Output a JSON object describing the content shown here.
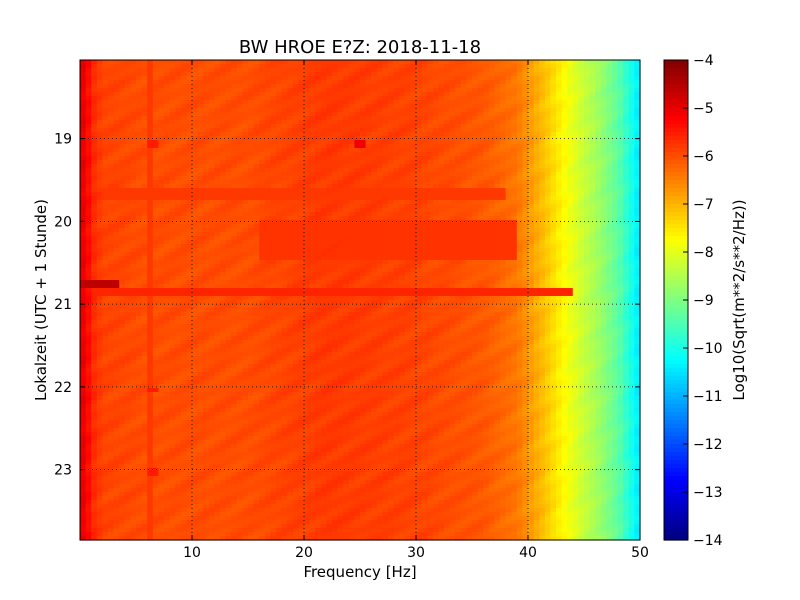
{
  "chart_data": {
    "type": "heatmap",
    "title": "BW HROE E?Z: 2018-11-18",
    "xlabel": "Frequency [Hz]",
    "ylabel": "Lokalzeit (UTC + 1 Stunde)",
    "xlim": [
      0,
      50
    ],
    "ylim": [
      18.05,
      23.85
    ],
    "x_ticks": [
      10,
      20,
      30,
      40,
      50
    ],
    "x_tick_labels": [
      "10",
      "20",
      "30",
      "40",
      "50"
    ],
    "y_ticks": [
      19,
      20,
      21,
      22,
      23
    ],
    "y_tick_labels": [
      "19",
      "20",
      "21",
      "22",
      "23"
    ],
    "y_inverted": true,
    "grid": true,
    "colorbar": {
      "label": "Log10(Sqrt(m**2/s**2/Hz))",
      "range": [
        -14,
        -4
      ],
      "ticks": [
        -4,
        -5,
        -6,
        -7,
        -8,
        -9,
        -10,
        -11,
        -12,
        -13,
        -14
      ],
      "tick_labels": [
        "−4",
        "−5",
        "−6",
        "−7",
        "−8",
        "−9",
        "−10",
        "−11",
        "−12",
        "−13",
        "−14"
      ],
      "colormap": "jet"
    },
    "frequency_profile": [
      {
        "f": 0.0,
        "v": -5.0
      },
      {
        "f": 0.5,
        "v": -5.1
      },
      {
        "f": 1.0,
        "v": -5.6
      },
      {
        "f": 2.0,
        "v": -5.9
      },
      {
        "f": 6.0,
        "v": -6.0
      },
      {
        "f": 15.0,
        "v": -6.0
      },
      {
        "f": 22.0,
        "v": -5.8
      },
      {
        "f": 30.0,
        "v": -5.9
      },
      {
        "f": 36.0,
        "v": -6.1
      },
      {
        "f": 39.0,
        "v": -6.4
      },
      {
        "f": 41.0,
        "v": -7.0
      },
      {
        "f": 42.5,
        "v": -7.5
      },
      {
        "f": 44.0,
        "v": -8.0
      },
      {
        "f": 46.0,
        "v": -8.6
      },
      {
        "f": 48.0,
        "v": -9.3
      },
      {
        "f": 49.5,
        "v": -10.2
      },
      {
        "f": 50.0,
        "v": -10.5
      }
    ],
    "features": [
      {
        "type": "band",
        "hour_from": 20.7,
        "hour_to": 20.8,
        "f_from": 0.0,
        "f_to": 3.5,
        "value": -4.6
      },
      {
        "type": "band",
        "hour_from": 20.8,
        "hour_to": 20.88,
        "f_from": 0.0,
        "f_to": 44.0,
        "value": -5.6
      },
      {
        "type": "band",
        "hour_from": 20.0,
        "hour_to": 20.45,
        "f_from": 16.0,
        "f_to": 39.0,
        "value": -5.75
      },
      {
        "type": "band",
        "hour_from": 19.6,
        "hour_to": 19.7,
        "f_from": 0.0,
        "f_to": 38.0,
        "value": -5.8
      },
      {
        "type": "spot",
        "hour_from": 19.02,
        "hour_to": 19.08,
        "f_from": 24.5,
        "f_to": 25.5,
        "value": -5.1
      },
      {
        "type": "spot",
        "hour_from": 19.02,
        "hour_to": 19.08,
        "f_from": 6.0,
        "f_to": 6.8,
        "value": -5.5
      },
      {
        "type": "spot",
        "hour_from": 22.0,
        "hour_to": 22.05,
        "f_from": 6.0,
        "f_to": 6.8,
        "value": -5.5
      },
      {
        "type": "spot",
        "hour_from": 23.0,
        "hour_to": 23.05,
        "f_from": 6.0,
        "f_to": 6.8,
        "value": -5.5
      },
      {
        "type": "line",
        "hour_from": 18.05,
        "hour_to": 23.85,
        "f_from": 6.2,
        "f_to": 6.7,
        "value": -5.8
      }
    ]
  }
}
